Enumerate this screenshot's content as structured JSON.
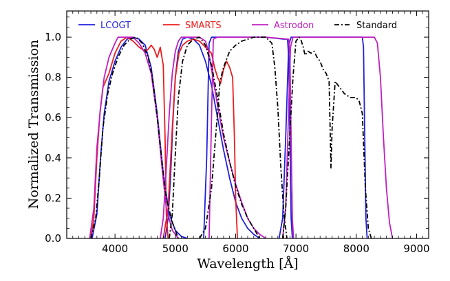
{
  "chart_data": {
    "type": "line",
    "xlabel": "Wavelength [Å]",
    "ylabel": "Normalized Transmission",
    "xlim": [
      3200,
      9200
    ],
    "ylim": [
      0.0,
      1.13
    ],
    "x_ticks": [
      "4000",
      "5000",
      "6000",
      "7000",
      "8000",
      "9000"
    ],
    "x_tick_values": [
      4000,
      5000,
      6000,
      7000,
      8000,
      9000
    ],
    "y_ticks": [
      "0.0",
      "0.2",
      "0.4",
      "0.6",
      "0.8",
      "1.0"
    ],
    "y_tick_values": [
      0.0,
      0.2,
      0.4,
      0.6,
      0.8,
      1.0
    ],
    "legend_position": "top",
    "series": [
      {
        "name": "LCOGT",
        "color": "#1f1fdd",
        "dash": "solid",
        "curves": [
          [
            [
              3620,
              0
            ],
            [
              3700,
              0.12
            ],
            [
              3760,
              0.4
            ],
            [
              3820,
              0.62
            ],
            [
              3900,
              0.78
            ],
            [
              4000,
              0.88
            ],
            [
              4100,
              0.95
            ],
            [
              4200,
              0.99
            ],
            [
              4300,
              1.0
            ],
            [
              4400,
              0.99
            ],
            [
              4500,
              0.96
            ],
            [
              4600,
              0.85
            ],
            [
              4700,
              0.62
            ],
            [
              4800,
              0.32
            ],
            [
              4900,
              0.12
            ],
            [
              5000,
              0.04
            ],
            [
              5100,
              0.01
            ],
            [
              5200,
              0
            ]
          ],
          [
            [
              4830,
              0
            ],
            [
              4880,
              0.1
            ],
            [
              4920,
              0.3
            ],
            [
              4960,
              0.58
            ],
            [
              5000,
              0.8
            ],
            [
              5050,
              0.93
            ],
            [
              5120,
              0.99
            ],
            [
              5200,
              1.0
            ],
            [
              5300,
              0.99
            ],
            [
              5400,
              0.96
            ],
            [
              5500,
              0.88
            ],
            [
              5600,
              0.76
            ],
            [
              5700,
              0.6
            ],
            [
              5800,
              0.44
            ],
            [
              5900,
              0.3
            ],
            [
              6000,
              0.18
            ],
            [
              6100,
              0.1
            ],
            [
              6200,
              0.05
            ],
            [
              6300,
              0.02
            ],
            [
              6400,
              0
            ]
          ],
          [
            [
              5470,
              0
            ],
            [
              5520,
              0.4
            ],
            [
              5560,
              0.97
            ],
            [
              5600,
              1.0
            ],
            [
              6000,
              1.0
            ],
            [
              6500,
              1.0
            ],
            [
              6800,
              0.99
            ],
            [
              6860,
              0.99
            ],
            [
              6880,
              0.9
            ],
            [
              6900,
              0.5
            ],
            [
              6920,
              0.1
            ],
            [
              6940,
              0
            ]
          ],
          [
            [
              6720,
              0
            ],
            [
              6780,
              0.1
            ],
            [
              6830,
              0.5
            ],
            [
              6880,
              0.96
            ],
            [
              6920,
              1.0
            ],
            [
              7000,
              1.0
            ],
            [
              7500,
              1.0
            ],
            [
              8000,
              1.0
            ],
            [
              8100,
              1.0
            ],
            [
              8120,
              0.95
            ],
            [
              8140,
              0.5
            ],
            [
              8160,
              0.1
            ],
            [
              8180,
              0
            ]
          ]
        ]
      },
      {
        "name": "SMARTS",
        "color": "#ee1c1c",
        "dash": "solid",
        "curves": [
          [
            [
              3600,
              0
            ],
            [
              3650,
              0.1
            ],
            [
              3700,
              0.4
            ],
            [
              3750,
              0.62
            ],
            [
              3800,
              0.75
            ],
            [
              3900,
              0.82
            ],
            [
              4000,
              0.92
            ],
            [
              4100,
              0.98
            ],
            [
              4200,
              1.0
            ],
            [
              4300,
              0.98
            ],
            [
              4400,
              0.95
            ],
            [
              4500,
              0.93
            ],
            [
              4550,
              0.94
            ],
            [
              4600,
              0.96
            ],
            [
              4650,
              0.94
            ],
            [
              4700,
              0.9
            ],
            [
              4750,
              0.95
            ],
            [
              4800,
              0.86
            ],
            [
              4830,
              0.5
            ],
            [
              4850,
              0.12
            ],
            [
              4880,
              0
            ]
          ],
          [
            [
              4800,
              0
            ],
            [
              4880,
              0.15
            ],
            [
              4950,
              0.55
            ],
            [
              5000,
              0.8
            ],
            [
              5060,
              0.92
            ],
            [
              5120,
              0.96
            ],
            [
              5200,
              0.98
            ],
            [
              5300,
              0.99
            ],
            [
              5400,
              0.98
            ],
            [
              5500,
              0.95
            ],
            [
              5600,
              0.92
            ],
            [
              5650,
              0.85
            ],
            [
              5700,
              0.8
            ],
            [
              5750,
              0.77
            ],
            [
              5800,
              0.84
            ],
            [
              5850,
              0.88
            ],
            [
              5900,
              0.85
            ],
            [
              5950,
              0.8
            ],
            [
              5980,
              0.5
            ],
            [
              6000,
              0.2
            ],
            [
              6030,
              0
            ]
          ]
        ]
      },
      {
        "name": "Astrodon",
        "color": "#bf1fbf",
        "dash": "solid",
        "curves": [
          [
            [
              3580,
              0
            ],
            [
              3650,
              0.15
            ],
            [
              3700,
              0.45
            ],
            [
              3760,
              0.65
            ],
            [
              3820,
              0.8
            ],
            [
              3900,
              0.9
            ],
            [
              4000,
              0.97
            ],
            [
              4050,
              1.0
            ],
            [
              4300,
              1.0
            ],
            [
              4400,
              0.97
            ],
            [
              4500,
              0.92
            ],
            [
              4600,
              0.82
            ],
            [
              4700,
              0.6
            ],
            [
              4780,
              0.35
            ],
            [
              4850,
              0.15
            ],
            [
              4950,
              0.04
            ],
            [
              5050,
              0
            ]
          ],
          [
            [
              4750,
              0
            ],
            [
              4800,
              0.1
            ],
            [
              4850,
              0.35
            ],
            [
              4900,
              0.62
            ],
            [
              4950,
              0.82
            ],
            [
              5000,
              0.93
            ],
            [
              5050,
              0.98
            ],
            [
              5100,
              1.0
            ],
            [
              5400,
              1.0
            ],
            [
              5500,
              0.98
            ],
            [
              5550,
              0.93
            ],
            [
              5600,
              0.84
            ],
            [
              5700,
              0.66
            ],
            [
              5800,
              0.5
            ],
            [
              5900,
              0.38
            ],
            [
              6000,
              0.27
            ],
            [
              6100,
              0.18
            ],
            [
              6200,
              0.1
            ],
            [
              6300,
              0.05
            ],
            [
              6400,
              0.02
            ],
            [
              6500,
              0
            ]
          ],
          [
            [
              5560,
              0
            ],
            [
              5600,
              0.6
            ],
            [
              5630,
              0.99
            ],
            [
              5700,
              1.0
            ],
            [
              6500,
              1.0
            ],
            [
              6880,
              0.99
            ],
            [
              6900,
              0.9
            ],
            [
              6920,
              0.5
            ],
            [
              6940,
              0.1
            ],
            [
              6960,
              0
            ]
          ],
          [
            [
              6780,
              0
            ],
            [
              6830,
              0.15
            ],
            [
              6870,
              0.55
            ],
            [
              6910,
              0.95
            ],
            [
              6950,
              1.0
            ],
            [
              7500,
              1.0
            ],
            [
              8000,
              1.0
            ],
            [
              8300,
              1.0
            ],
            [
              8350,
              0.97
            ],
            [
              8400,
              0.8
            ],
            [
              8450,
              0.5
            ],
            [
              8500,
              0.25
            ],
            [
              8550,
              0.08
            ],
            [
              8600,
              0
            ]
          ]
        ]
      },
      {
        "name": "Standard",
        "color": "#000000",
        "dash": "7,3,2,3",
        "curves": [
          [
            [
              3600,
              0
            ],
            [
              3680,
              0.1
            ],
            [
              3740,
              0.3
            ],
            [
              3800,
              0.55
            ],
            [
              3880,
              0.72
            ],
            [
              3960,
              0.82
            ],
            [
              4050,
              0.9
            ],
            [
              4150,
              0.96
            ],
            [
              4250,
              0.99
            ],
            [
              4350,
              1.0
            ],
            [
              4450,
              0.97
            ],
            [
              4550,
              0.9
            ],
            [
              4620,
              0.8
            ],
            [
              4700,
              0.6
            ],
            [
              4780,
              0.38
            ],
            [
              4850,
              0.2
            ],
            [
              4950,
              0.08
            ],
            [
              5050,
              0
            ]
          ],
          [
            [
              4900,
              0
            ],
            [
              4950,
              0.12
            ],
            [
              5000,
              0.42
            ],
            [
              5050,
              0.7
            ],
            [
              5120,
              0.88
            ],
            [
              5200,
              0.96
            ],
            [
              5300,
              0.99
            ],
            [
              5400,
              1.0
            ],
            [
              5500,
              0.96
            ],
            [
              5600,
              0.86
            ],
            [
              5700,
              0.7
            ],
            [
              5800,
              0.52
            ],
            [
              5900,
              0.38
            ],
            [
              6000,
              0.26
            ],
            [
              6100,
              0.17
            ],
            [
              6200,
              0.1
            ],
            [
              6300,
              0.05
            ],
            [
              6400,
              0
            ]
          ],
          [
            [
              5400,
              0
            ],
            [
              5500,
              0.05
            ],
            [
              5600,
              0.25
            ],
            [
              5680,
              0.55
            ],
            [
              5740,
              0.78
            ],
            [
              5800,
              0.85
            ],
            [
              5900,
              0.93
            ],
            [
              6000,
              0.96
            ],
            [
              6100,
              0.98
            ],
            [
              6300,
              1.0
            ],
            [
              6500,
              1.0
            ],
            [
              6600,
              0.97
            ],
            [
              6650,
              0.85
            ],
            [
              6700,
              0.65
            ],
            [
              6750,
              0.35
            ],
            [
              6800,
              0.12
            ],
            [
              6850,
              0
            ]
          ],
          [
            [
              6780,
              0
            ],
            [
              6830,
              0.15
            ],
            [
              6880,
              0.42
            ],
            [
              6950,
              0.8
            ],
            [
              7000,
              0.98
            ],
            [
              7050,
              1.0
            ],
            [
              7080,
              0.99
            ],
            [
              7120,
              0.95
            ],
            [
              7150,
              0.91
            ],
            [
              7200,
              0.93
            ],
            [
              7250,
              0.92
            ],
            [
              7300,
              0.93
            ],
            [
              7350,
              0.9
            ],
            [
              7400,
              0.88
            ],
            [
              7450,
              0.84
            ],
            [
              7500,
              0.82
            ],
            [
              7550,
              0.78
            ],
            [
              7580,
              0.35
            ],
            [
              7600,
              0.55
            ],
            [
              7650,
              0.78
            ],
            [
              7700,
              0.76
            ],
            [
              7800,
              0.72
            ],
            [
              7900,
              0.7
            ],
            [
              8000,
              0.7
            ],
            [
              8050,
              0.68
            ],
            [
              8100,
              0.62
            ],
            [
              8150,
              0.25
            ],
            [
              8200,
              0.05
            ],
            [
              8250,
              0
            ]
          ]
        ]
      }
    ]
  }
}
